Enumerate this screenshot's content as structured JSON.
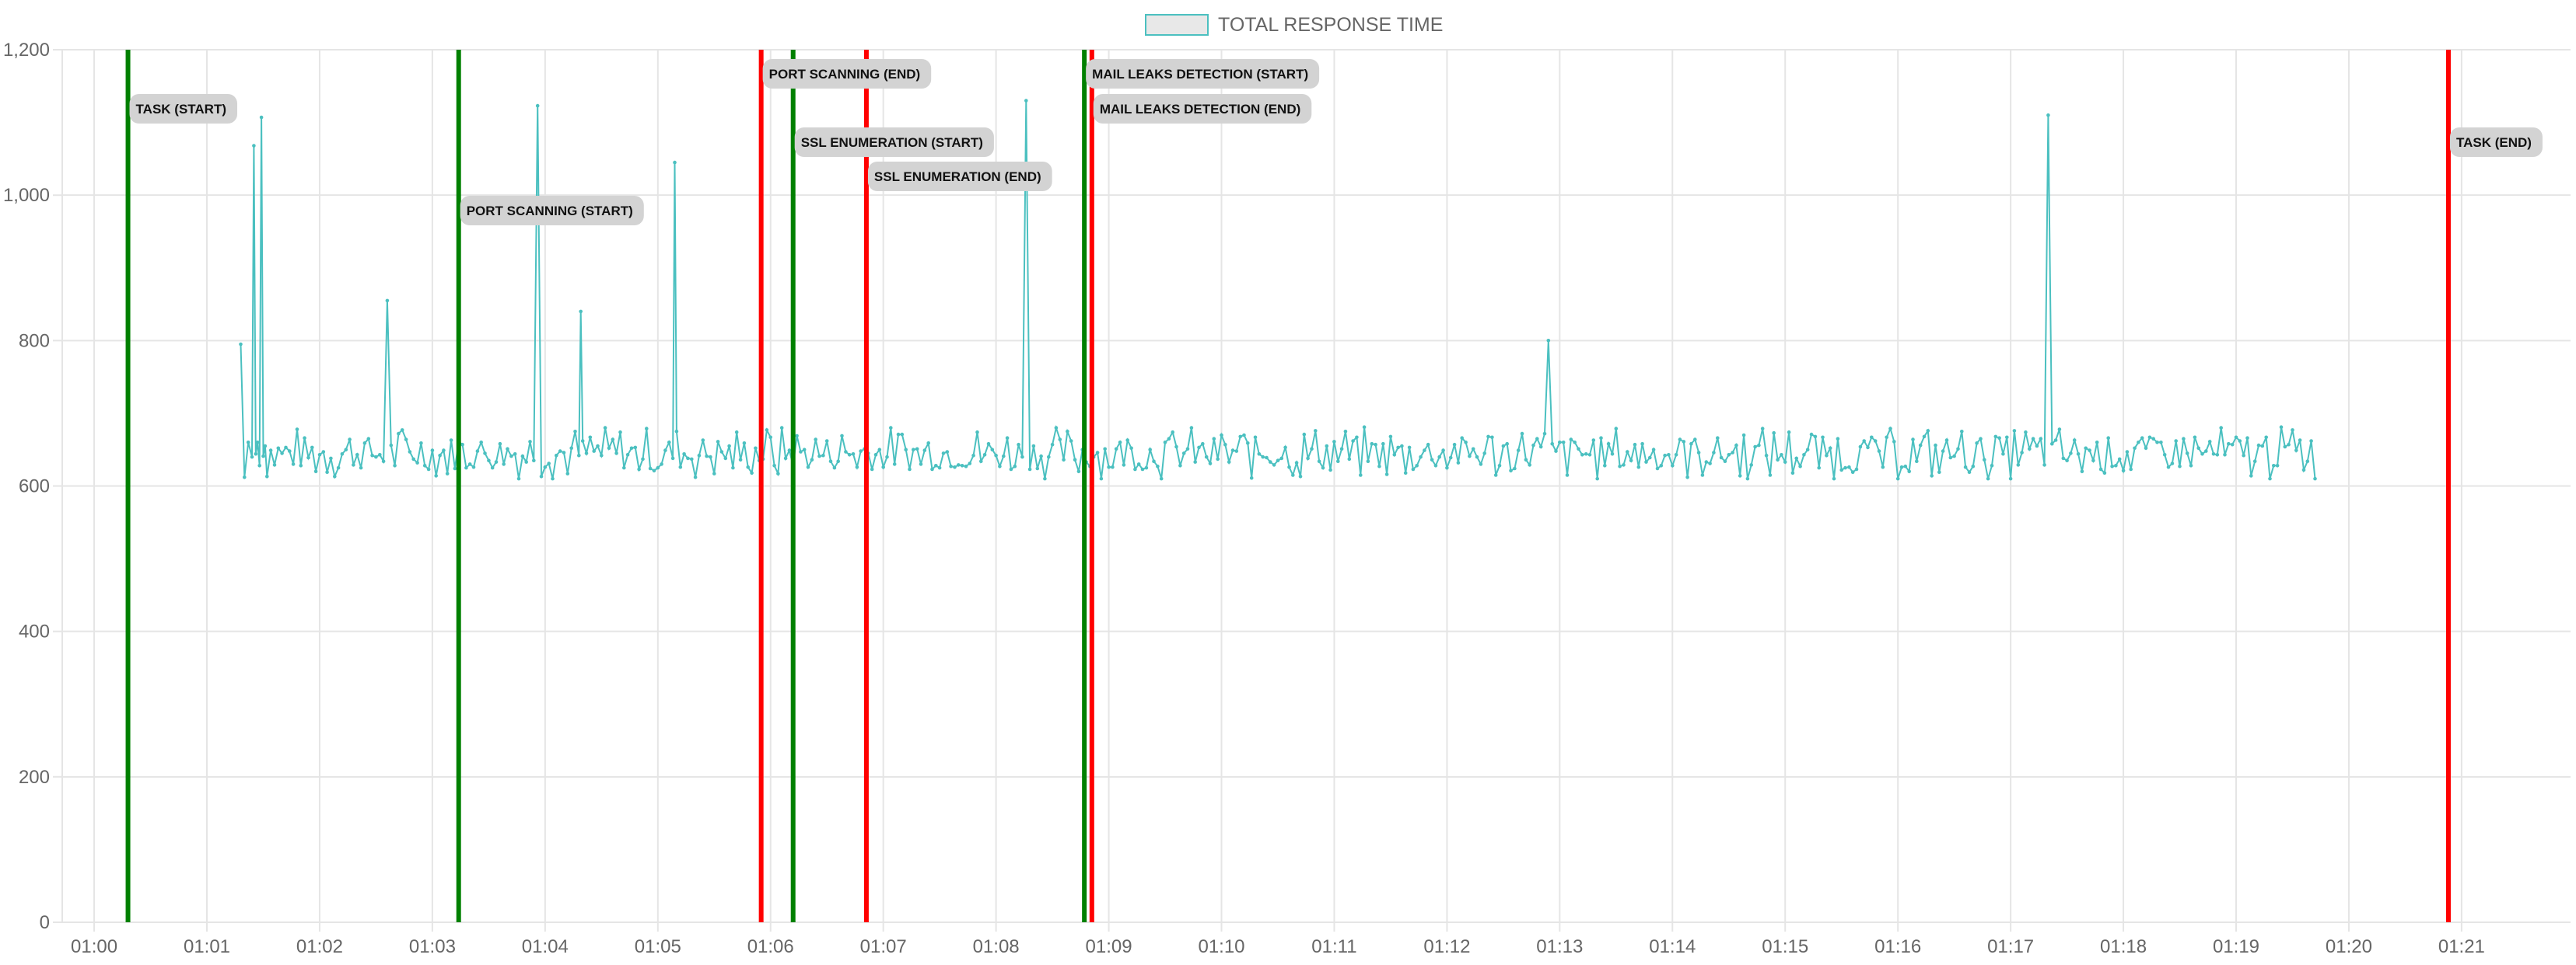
{
  "chart_data": {
    "type": "line",
    "title": "",
    "xlabel": "",
    "ylabel": "",
    "x_unit": "minutes (mm:ss timeline)",
    "xlim": [
      "00:59:43",
      "01:21:58"
    ],
    "ylim": [
      0,
      1200
    ],
    "y_ticks": [
      0,
      200,
      400,
      600,
      800,
      1000,
      1200
    ],
    "y_tick_labels": [
      "0",
      "200",
      "400",
      "600",
      "800",
      "1,000",
      "1,200"
    ],
    "x_ticks": [
      "01:00",
      "01:01",
      "01:02",
      "01:03",
      "01:04",
      "01:05",
      "01:06",
      "01:07",
      "01:08",
      "01:09",
      "01:10",
      "01:11",
      "01:12",
      "01:13",
      "01:14",
      "01:15",
      "01:16",
      "01:17",
      "01:18",
      "01:19",
      "01:20",
      "01:21"
    ],
    "grid": true,
    "legend_position": "top",
    "series": [
      {
        "name": "TOTAL RESPONSE TIME",
        "color": "#4bc0c0",
        "x_start": "01:01:18",
        "x_end": "01:19:42",
        "baseline_low": 610,
        "baseline_high": 685,
        "typical": 645,
        "points": [
          [
            "01:01:18",
            795
          ],
          [
            "01:01:20",
            612
          ],
          [
            "01:01:22",
            660
          ],
          [
            "01:01:24",
            640
          ],
          [
            "01:01:25",
            1068
          ],
          [
            "01:01:27",
            660
          ],
          [
            "01:01:29",
            1107
          ],
          [
            "01:01:31",
            655
          ],
          [
            "01:02:36",
            855
          ],
          [
            "01:03:56",
            1123
          ],
          [
            "01:04:19",
            840
          ],
          [
            "01:05:09",
            1045
          ],
          [
            "01:08:16",
            1130
          ],
          [
            "01:12:54",
            800
          ],
          [
            "01:17:20",
            1110
          ],
          [
            "01:19:40",
            662
          ],
          [
            "01:19:42",
            610
          ]
        ]
      }
    ],
    "events": [
      {
        "label": "TASK (START)",
        "time": "01:00:18",
        "kind": "start",
        "color": "#008000"
      },
      {
        "label": "PORT SCANNING (START)",
        "time": "01:03:14",
        "kind": "start",
        "color": "#008000"
      },
      {
        "label": "PORT SCANNING (END)",
        "time": "01:05:55",
        "kind": "end",
        "color": "#ff0000"
      },
      {
        "label": "SSL ENUMERATION (START)",
        "time": "01:06:12",
        "kind": "start",
        "color": "#008000"
      },
      {
        "label": "SSL ENUMERATION (END)",
        "time": "01:06:51",
        "kind": "end",
        "color": "#ff0000"
      },
      {
        "label": "MAIL LEAKS DETECTION (START)",
        "time": "01:08:47",
        "kind": "start",
        "color": "#008000"
      },
      {
        "label": "MAIL LEAKS DETECTION (END)",
        "time": "01:08:51",
        "kind": "end",
        "color": "#ff0000"
      },
      {
        "label": "TASK (END)",
        "time": "01:20:53",
        "kind": "end",
        "color": "#ff0000"
      }
    ]
  },
  "legend": {
    "label": "TOTAL RESPONSE TIME"
  },
  "colors": {
    "series": "#4bc0c0",
    "start_line": "#008000",
    "end_line": "#ff0000",
    "grid": "#e5e5e5",
    "annotation_bg": "#d3d3d3"
  }
}
